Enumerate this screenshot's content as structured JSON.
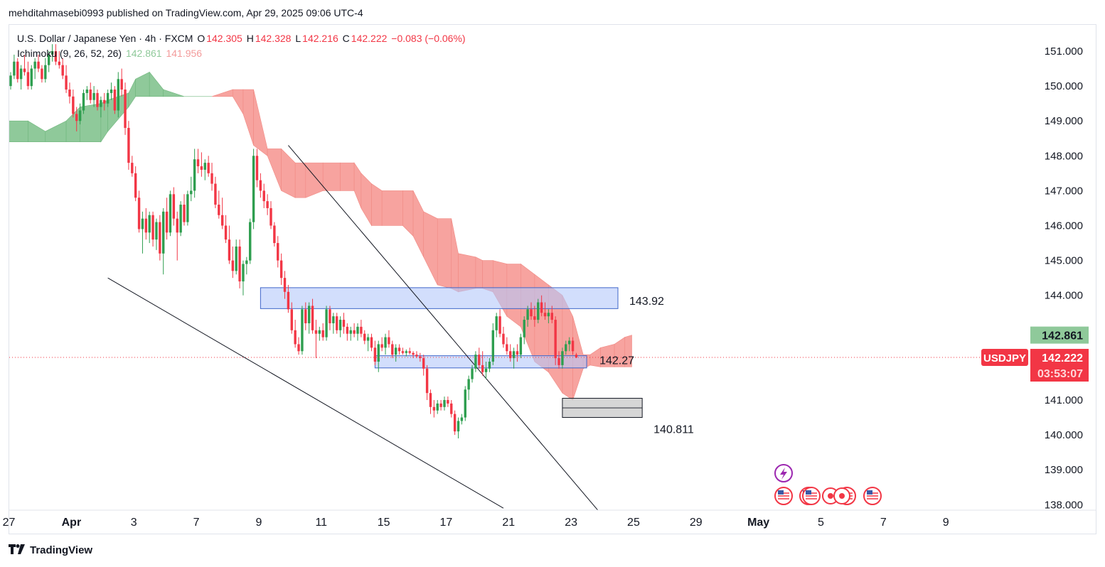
{
  "publisher_line": "mehditahmasebi0993 published on TradingView.com, Apr 29, 2025 09:06 UTC-4",
  "legend": {
    "symbol": "U.S. Dollar / Japanese Yen · 4h · FXCM",
    "o_label": "O",
    "o": "142.305",
    "h_label": "H",
    "h": "142.328",
    "l_label": "L",
    "l": "142.216",
    "c_label": "C",
    "c": "142.222",
    "change": "−0.083 (−0.06%)",
    "indicator": "Ichimoku (9, 26, 52, 26)",
    "ind_a": "142.861",
    "ind_b": "141.956"
  },
  "brand": "TradingView",
  "colors": {
    "up": "#22ab94",
    "up_body": "#2e7d32",
    "down": "#f23645",
    "cloud_bull": "#8fc99a",
    "cloud_bear": "#f7a39f",
    "zone": "#c9d8fb",
    "zone_border": "#3f66c9"
  },
  "chart_data": {
    "type": "candlestick",
    "y_axis": {
      "min": 138.0,
      "max": 151.0,
      "ticks": [
        "151.000",
        "150.000",
        "149.000",
        "148.000",
        "147.000",
        "146.000",
        "145.000",
        "144.000",
        "143.000",
        "142.000",
        "141.000",
        "140.000",
        "139.000",
        "138.000"
      ]
    },
    "x_ticks": [
      {
        "label": "27",
        "i": -0.5
      },
      {
        "label": "Apr",
        "i": 17.5
      },
      {
        "label": "3",
        "i": 35.5
      },
      {
        "label": "7",
        "i": 53.5
      },
      {
        "label": "9",
        "i": 71.5
      },
      {
        "label": "11",
        "i": 89.5
      },
      {
        "label": "15",
        "i": 107.5
      },
      {
        "label": "17",
        "i": 125.5
      },
      {
        "label": "21",
        "i": 143.5
      },
      {
        "label": "23",
        "i": 161.5
      },
      {
        "label": "25",
        "i": 179.5
      },
      {
        "label": "29",
        "i": 197.5
      },
      {
        "label": "May",
        "i": 215.5
      },
      {
        "label": "5",
        "i": 233.5
      },
      {
        "label": "7",
        "i": 251.5
      },
      {
        "label": "9",
        "i": 269.5
      }
    ],
    "candles": [
      [
        150.0,
        150.4,
        149.9,
        150.3
      ],
      [
        150.3,
        150.9,
        150.2,
        150.7
      ],
      [
        150.7,
        150.8,
        150.1,
        150.2
      ],
      [
        150.2,
        150.6,
        149.9,
        150.5
      ],
      [
        150.5,
        150.9,
        150.3,
        150.4
      ],
      [
        150.4,
        150.7,
        149.9,
        150.0
      ],
      [
        150.0,
        150.6,
        149.9,
        150.5
      ],
      [
        150.5,
        150.8,
        150.2,
        150.7
      ],
      [
        150.7,
        150.9,
        150.4,
        150.5
      ],
      [
        150.5,
        150.6,
        150.1,
        150.2
      ],
      [
        150.2,
        150.8,
        150.1,
        150.6
      ],
      [
        150.6,
        151.0,
        150.4,
        150.9
      ],
      [
        150.9,
        151.2,
        150.7,
        151.0
      ],
      [
        151.0,
        151.2,
        150.6,
        150.7
      ],
      [
        150.7,
        151.0,
        150.5,
        150.6
      ],
      [
        150.6,
        150.8,
        150.2,
        150.3
      ],
      [
        150.3,
        150.6,
        149.8,
        149.9
      ],
      [
        149.9,
        150.1,
        149.5,
        149.7
      ],
      [
        149.7,
        149.9,
        149.1,
        149.2
      ],
      [
        149.2,
        149.4,
        148.7,
        149.0
      ],
      [
        149.0,
        149.5,
        148.9,
        149.3
      ],
      [
        149.3,
        149.9,
        149.2,
        149.8
      ],
      [
        149.8,
        150.0,
        149.6,
        149.9
      ],
      [
        149.9,
        150.1,
        149.5,
        149.6
      ],
      [
        149.6,
        150.0,
        149.4,
        149.8
      ],
      [
        149.8,
        149.9,
        149.3,
        149.4
      ],
      [
        149.4,
        149.7,
        149.1,
        149.6
      ],
      [
        149.6,
        149.8,
        149.3,
        149.5
      ],
      [
        149.5,
        149.9,
        149.4,
        149.8
      ],
      [
        149.8,
        150.1,
        149.6,
        149.9
      ],
      [
        149.9,
        150.0,
        149.2,
        149.3
      ],
      [
        149.3,
        150.4,
        149.1,
        150.2
      ],
      [
        150.2,
        150.5,
        149.7,
        149.9
      ],
      [
        149.9,
        150.1,
        148.6,
        148.8
      ],
      [
        148.8,
        149.0,
        147.6,
        147.8
      ],
      [
        147.8,
        148.0,
        147.4,
        147.5
      ],
      [
        147.5,
        147.7,
        146.7,
        146.8
      ],
      [
        146.8,
        147.0,
        145.8,
        145.9
      ],
      [
        145.9,
        146.4,
        145.2,
        146.2
      ],
      [
        146.2,
        146.5,
        145.6,
        145.8
      ],
      [
        145.8,
        146.4,
        145.5,
        146.3
      ],
      [
        146.3,
        146.4,
        145.4,
        145.6
      ],
      [
        145.6,
        146.2,
        145.3,
        146.1
      ],
      [
        146.1,
        146.3,
        145.0,
        145.2
      ],
      [
        145.2,
        146.5,
        144.6,
        146.4
      ],
      [
        146.4,
        146.8,
        145.6,
        145.8
      ],
      [
        145.8,
        147.0,
        145.7,
        146.9
      ],
      [
        146.9,
        147.1,
        146.0,
        146.2
      ],
      [
        146.2,
        146.4,
        145.0,
        145.8
      ],
      [
        145.8,
        146.7,
        145.7,
        146.6
      ],
      [
        146.6,
        146.9,
        146.0,
        146.1
      ],
      [
        146.1,
        147.0,
        146.0,
        146.9
      ],
      [
        146.9,
        147.4,
        146.7,
        147.0
      ],
      [
        147.0,
        148.2,
        146.8,
        147.9
      ],
      [
        147.9,
        148.2,
        147.5,
        147.7
      ],
      [
        147.7,
        148.1,
        147.4,
        147.6
      ],
      [
        147.6,
        147.9,
        147.3,
        147.8
      ],
      [
        147.8,
        148.0,
        147.4,
        147.5
      ],
      [
        147.5,
        147.8,
        147.0,
        147.2
      ],
      [
        147.2,
        147.4,
        146.5,
        146.6
      ],
      [
        146.6,
        147.0,
        146.2,
        146.3
      ],
      [
        146.3,
        146.8,
        145.9,
        146.0
      ],
      [
        146.0,
        146.3,
        145.5,
        145.6
      ],
      [
        145.6,
        146.0,
        144.9,
        145.0
      ],
      [
        145.0,
        145.4,
        144.5,
        144.7
      ],
      [
        144.7,
        145.6,
        144.6,
        145.4
      ],
      [
        145.4,
        145.6,
        144.2,
        144.4
      ],
      [
        144.4,
        145.0,
        144.0,
        144.9
      ],
      [
        144.9,
        145.1,
        144.6,
        145.0
      ],
      [
        145.0,
        146.2,
        144.9,
        146.1
      ],
      [
        146.1,
        148.2,
        145.9,
        148.0
      ],
      [
        148.0,
        148.2,
        147.1,
        147.3
      ],
      [
        147.3,
        147.5,
        146.8,
        147.0
      ],
      [
        147.0,
        147.2,
        146.5,
        146.7
      ],
      [
        146.7,
        146.9,
        146.3,
        146.5
      ],
      [
        146.5,
        146.7,
        145.9,
        146.0
      ],
      [
        146.0,
        146.1,
        145.4,
        145.5
      ],
      [
        145.5,
        145.7,
        144.8,
        145.0
      ],
      [
        145.0,
        145.2,
        144.3,
        144.5
      ],
      [
        144.5,
        144.7,
        143.9,
        144.1
      ],
      [
        144.1,
        144.3,
        143.5,
        143.6
      ],
      [
        143.6,
        143.8,
        142.9,
        143.0
      ],
      [
        143.0,
        143.3,
        142.5,
        142.6
      ],
      [
        142.6,
        142.8,
        142.3,
        142.4
      ],
      [
        142.4,
        143.7,
        142.3,
        143.6
      ],
      [
        143.6,
        143.8,
        143.0,
        143.2
      ],
      [
        143.2,
        143.8,
        142.9,
        143.7
      ],
      [
        143.7,
        143.9,
        142.9,
        143.0
      ],
      [
        143.0,
        143.3,
        142.2,
        142.9
      ],
      [
        142.9,
        143.1,
        142.7,
        143.0
      ],
      [
        143.0,
        143.2,
        142.7,
        142.8
      ],
      [
        142.8,
        143.7,
        142.7,
        143.6
      ],
      [
        143.6,
        143.7,
        143.0,
        143.2
      ],
      [
        143.2,
        143.5,
        142.9,
        143.4
      ],
      [
        143.4,
        143.5,
        142.9,
        143.0
      ],
      [
        143.0,
        143.4,
        142.8,
        143.3
      ],
      [
        143.3,
        143.5,
        142.9,
        143.1
      ],
      [
        143.1,
        143.2,
        142.7,
        142.9
      ],
      [
        142.9,
        143.1,
        142.7,
        143.0
      ],
      [
        143.0,
        143.2,
        142.8,
        142.9
      ],
      [
        142.9,
        143.2,
        142.7,
        143.1
      ],
      [
        143.1,
        143.3,
        142.8,
        142.9
      ],
      [
        142.9,
        143.0,
        142.6,
        142.7
      ],
      [
        142.7,
        142.9,
        142.4,
        142.8
      ],
      [
        142.8,
        142.9,
        142.4,
        142.5
      ],
      [
        142.5,
        142.7,
        142.0,
        142.1
      ],
      [
        142.1,
        142.7,
        141.8,
        142.6
      ],
      [
        142.6,
        142.8,
        142.4,
        142.5
      ],
      [
        142.5,
        142.9,
        142.3,
        142.8
      ],
      [
        142.8,
        143.0,
        142.5,
        142.6
      ],
      [
        142.6,
        142.7,
        142.2,
        142.3
      ],
      [
        142.3,
        142.6,
        142.1,
        142.5
      ],
      [
        142.5,
        142.6,
        142.3,
        142.4
      ],
      [
        142.4,
        142.5,
        142.3,
        142.35
      ],
      [
        142.35,
        142.45,
        142.25,
        142.4
      ],
      [
        142.4,
        142.5,
        142.3,
        142.35
      ],
      [
        142.35,
        142.4,
        142.2,
        142.3
      ],
      [
        142.3,
        142.4,
        142.2,
        142.25
      ],
      [
        142.25,
        142.35,
        142.1,
        142.2
      ],
      [
        142.2,
        142.3,
        141.7,
        141.9
      ],
      [
        141.9,
        142.0,
        141.0,
        141.2
      ],
      [
        141.2,
        141.3,
        140.6,
        140.8
      ],
      [
        140.8,
        141.0,
        140.5,
        140.7
      ],
      [
        140.7,
        141.0,
        140.6,
        140.9
      ],
      [
        140.9,
        141.0,
        140.7,
        140.8
      ],
      [
        140.8,
        141.1,
        140.7,
        141.0
      ],
      [
        141.0,
        141.1,
        140.8,
        140.9
      ],
      [
        140.9,
        141.0,
        140.5,
        140.6
      ],
      [
        140.6,
        140.7,
        140.0,
        140.1
      ],
      [
        140.1,
        140.5,
        139.9,
        140.4
      ],
      [
        140.4,
        140.6,
        140.3,
        140.5
      ],
      [
        140.5,
        141.4,
        140.4,
        141.3
      ],
      [
        141.3,
        141.7,
        141.0,
        141.6
      ],
      [
        141.6,
        142.0,
        141.5,
        141.9
      ],
      [
        141.9,
        142.4,
        141.8,
        142.3
      ],
      [
        142.3,
        142.5,
        141.9,
        142.0
      ],
      [
        142.0,
        142.4,
        141.7,
        141.8
      ],
      [
        141.8,
        142.1,
        141.6,
        141.9
      ],
      [
        141.9,
        142.2,
        141.8,
        142.1
      ],
      [
        142.1,
        143.2,
        142.0,
        143.0
      ],
      [
        143.0,
        143.5,
        142.8,
        143.4
      ],
      [
        143.4,
        143.6,
        142.8,
        142.9
      ],
      [
        142.9,
        143.1,
        142.5,
        142.6
      ],
      [
        142.6,
        142.8,
        142.3,
        142.4
      ],
      [
        142.4,
        142.6,
        142.1,
        142.2
      ],
      [
        142.2,
        142.5,
        141.9,
        142.4
      ],
      [
        142.4,
        142.6,
        142.1,
        142.3
      ],
      [
        142.3,
        142.9,
        142.2,
        142.8
      ],
      [
        142.8,
        143.4,
        142.6,
        143.3
      ],
      [
        143.3,
        143.7,
        143.1,
        143.6
      ],
      [
        143.6,
        143.8,
        143.3,
        143.4
      ],
      [
        143.4,
        143.7,
        143.1,
        143.3
      ],
      [
        143.3,
        143.9,
        143.2,
        143.8
      ],
      [
        143.8,
        144.0,
        143.4,
        143.5
      ],
      [
        143.5,
        143.8,
        143.3,
        143.4
      ],
      [
        143.4,
        143.6,
        143.2,
        143.5
      ],
      [
        143.5,
        143.7,
        143.2,
        143.3
      ],
      [
        143.3,
        143.4,
        142.0,
        142.2
      ],
      [
        142.2,
        142.4,
        141.9,
        142.0
      ],
      [
        142.0,
        142.5,
        141.9,
        142.4
      ],
      [
        142.4,
        142.7,
        142.3,
        142.6
      ],
      [
        142.6,
        142.8,
        142.4,
        142.7
      ],
      [
        142.7,
        142.8,
        142.3,
        142.4
      ],
      [
        142.3,
        142.35,
        142.2,
        142.22
      ]
    ],
    "cloud": [
      [
        -1,
        149.0,
        148.4
      ],
      [
        5,
        149.0,
        148.4
      ],
      [
        10,
        148.7,
        148.4
      ],
      [
        16,
        149.0,
        148.4
      ],
      [
        20,
        149.4,
        148.4
      ],
      [
        26,
        149.5,
        148.4
      ],
      [
        28,
        149.6,
        148.7
      ],
      [
        34,
        149.8,
        149.4
      ],
      [
        36,
        150.2,
        149.7
      ],
      [
        40,
        150.4,
        149.7
      ],
      [
        44,
        149.9,
        149.7
      ],
      [
        50,
        149.7,
        149.7
      ],
      [
        58,
        149.7,
        149.7
      ],
      [
        64,
        149.7,
        149.9
      ],
      [
        67,
        149.2,
        149.9
      ],
      [
        70,
        148.3,
        149.9
      ],
      [
        74,
        148.0,
        148.2
      ],
      [
        78,
        147.0,
        148.2
      ],
      [
        82,
        146.8,
        147.8
      ],
      [
        85,
        146.8,
        147.8
      ],
      [
        90,
        147.0,
        147.8
      ],
      [
        95,
        147.0,
        147.8
      ],
      [
        99,
        147.0,
        147.8
      ],
      [
        101,
        146.5,
        147.5
      ],
      [
        104,
        146.0,
        147.2
      ],
      [
        107,
        146.0,
        147.0
      ],
      [
        113,
        146.0,
        147.0
      ],
      [
        116,
        145.7,
        147.0
      ],
      [
        119,
        145.1,
        146.4
      ],
      [
        123,
        144.3,
        146.2
      ],
      [
        127,
        144.2,
        146.2
      ],
      [
        129,
        144.1,
        145.2
      ],
      [
        134,
        144.2,
        145.1
      ],
      [
        136,
        144.2,
        145.0
      ],
      [
        139,
        144.1,
        145.0
      ],
      [
        143,
        143.4,
        144.9
      ],
      [
        147,
        143.1,
        144.9
      ],
      [
        151,
        142.1,
        144.6
      ],
      [
        155,
        141.8,
        144.3
      ],
      [
        159,
        141.2,
        144.0
      ],
      [
        162,
        141.0,
        143.4
      ],
      [
        165,
        141.9,
        142.3
      ],
      [
        167,
        142.0,
        142.3
      ],
      [
        170,
        141.95,
        142.5
      ],
      [
        174,
        141.95,
        142.6
      ],
      [
        177,
        141.95,
        142.8
      ],
      [
        179,
        141.95,
        142.861
      ]
    ],
    "zones": [
      {
        "label": "143.92",
        "i0": 72,
        "i1": 175,
        "y0": 143.62,
        "y1": 144.22
      },
      {
        "label": "142.27",
        "i0": 105,
        "i1": 166,
        "y0": 141.92,
        "y1": 142.27
      },
      {
        "label": "140.811",
        "i0": 159,
        "i1": 182,
        "y0": 140.5,
        "y1": 141.05
      }
    ],
    "trendlines": [
      {
        "i0": 80,
        "y0": 148.3,
        "i1": 170,
        "y1": 137.75
      },
      {
        "i0": 28,
        "y0": 144.5,
        "i1": 142,
        "y1": 137.9
      }
    ],
    "last_price": {
      "symbol": "USDJPY",
      "price": "142.222",
      "countdown": "03:53:07",
      "value": 142.222
    },
    "axis_tags": [
      {
        "label": "142.861",
        "value": 142.861,
        "color": "#8fc99a"
      },
      {
        "label": "141.956",
        "value": 141.956,
        "color": "#f7a39f"
      }
    ]
  }
}
